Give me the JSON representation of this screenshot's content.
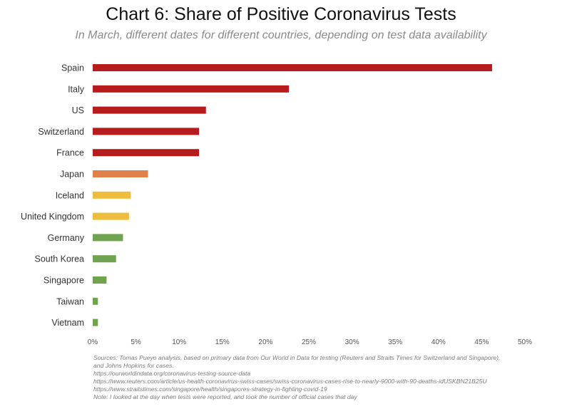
{
  "chart_data": {
    "type": "bar",
    "orientation": "horizontal",
    "title": "Chart 6: Share of Positive Coronavirus Tests",
    "subtitle": "In March, different dates for different countries, depending on test data availability",
    "xlabel": "",
    "ylabel": "",
    "xlim": [
      0,
      50
    ],
    "x_tick_labels": [
      "0%",
      "5%",
      "10%",
      "15%",
      "20%",
      "25%",
      "30%",
      "35%",
      "40%",
      "45%",
      "50%"
    ],
    "x_ticks": [
      0,
      5,
      10,
      15,
      20,
      25,
      30,
      35,
      40,
      45,
      50
    ],
    "grid": false,
    "categories": [
      "Spain",
      "Italy",
      "US",
      "Switzerland",
      "France",
      "Japan",
      "Iceland",
      "United Kingdom",
      "Germany",
      "South Korea",
      "Singapore",
      "Taiwan",
      "Vietnam"
    ],
    "values": [
      46.2,
      22.7,
      13.1,
      12.3,
      12.3,
      6.4,
      4.4,
      4.2,
      3.5,
      2.7,
      1.6,
      0.6,
      0.6
    ],
    "colors": [
      "#b71c1c",
      "#b71c1c",
      "#b71c1c",
      "#b71c1c",
      "#b71c1c",
      "#e0804a",
      "#efbd3e",
      "#efbd3e",
      "#6fa34f",
      "#6fa34f",
      "#6fa34f",
      "#6fa34f",
      "#6fa34f"
    ]
  },
  "notes": [
    "Sources: Tomas Pueyo analysis, based on primary data from Our World in Data for testing (Reuters and Straits Times for Switzerland and Singapore),",
    "and Johns Hopkins for cases.",
    "https://ourworldindata.org/coronavirus-testing-source-data",
    "https://www.reuters.com/article/us-health-coronavirus-swiss-cases/swiss-coronavirus-cases-rise-to-nearly-9000-with-90-deaths-idUSKBN21B25U",
    "https://www.straitstimes.com/singapore/health/singapores-strategy-in-fighting-covid-19",
    "Note: I looked at the day when tests were reported, and took the number of official cases that day"
  ]
}
